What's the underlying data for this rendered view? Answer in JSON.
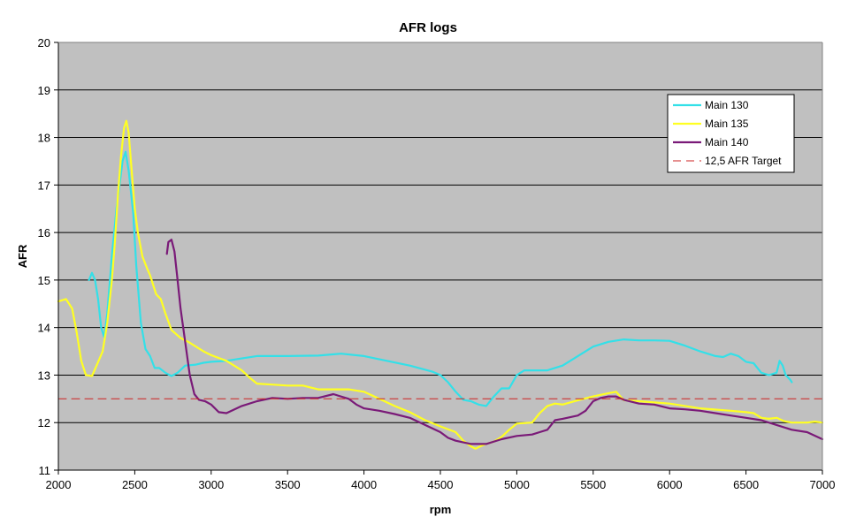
{
  "chart_data": {
    "type": "line",
    "title": "AFR logs",
    "xlabel": "rpm",
    "ylabel": "AFR",
    "xlim": [
      2000,
      7000
    ],
    "ylim": [
      11,
      20
    ],
    "xticks": [
      2000,
      2500,
      3000,
      3500,
      4000,
      4500,
      5000,
      5500,
      6000,
      6500,
      7000
    ],
    "yticks": [
      11,
      12,
      13,
      14,
      15,
      16,
      17,
      18,
      19,
      20
    ],
    "grid": true,
    "plot_background": "#c0c0c0",
    "legend_position": "top-right",
    "series": [
      {
        "name": "Main 130",
        "color": "#33e0e8",
        "points": [
          [
            2200,
            15.0
          ],
          [
            2220,
            15.15
          ],
          [
            2240,
            15.0
          ],
          [
            2260,
            14.6
          ],
          [
            2280,
            14.0
          ],
          [
            2300,
            13.8
          ],
          [
            2320,
            14.3
          ],
          [
            2350,
            15.5
          ],
          [
            2380,
            16.5
          ],
          [
            2420,
            17.5
          ],
          [
            2440,
            17.7
          ],
          [
            2460,
            17.3
          ],
          [
            2490,
            16.4
          ],
          [
            2510,
            15.3
          ],
          [
            2540,
            14.1
          ],
          [
            2570,
            13.55
          ],
          [
            2600,
            13.4
          ],
          [
            2630,
            13.15
          ],
          [
            2660,
            13.15
          ],
          [
            2700,
            13.05
          ],
          [
            2740,
            12.98
          ],
          [
            2780,
            13.05
          ],
          [
            2830,
            13.2
          ],
          [
            2900,
            13.22
          ],
          [
            2950,
            13.26
          ],
          [
            3000,
            13.28
          ],
          [
            3100,
            13.3
          ],
          [
            3200,
            13.35
          ],
          [
            3300,
            13.4
          ],
          [
            3500,
            13.4
          ],
          [
            3700,
            13.41
          ],
          [
            3850,
            13.45
          ],
          [
            4000,
            13.4
          ],
          [
            4150,
            13.3
          ],
          [
            4300,
            13.2
          ],
          [
            4450,
            13.07
          ],
          [
            4500,
            13.0
          ],
          [
            4550,
            12.85
          ],
          [
            4600,
            12.65
          ],
          [
            4650,
            12.48
          ],
          [
            4700,
            12.45
          ],
          [
            4750,
            12.38
          ],
          [
            4800,
            12.35
          ],
          [
            4850,
            12.55
          ],
          [
            4900,
            12.72
          ],
          [
            4950,
            12.72
          ],
          [
            5000,
            13.0
          ],
          [
            5050,
            13.1
          ],
          [
            5100,
            13.1
          ],
          [
            5200,
            13.1
          ],
          [
            5300,
            13.2
          ],
          [
            5400,
            13.4
          ],
          [
            5500,
            13.6
          ],
          [
            5600,
            13.7
          ],
          [
            5700,
            13.75
          ],
          [
            5800,
            13.73
          ],
          [
            5900,
            13.73
          ],
          [
            6000,
            13.72
          ],
          [
            6100,
            13.62
          ],
          [
            6200,
            13.5
          ],
          [
            6300,
            13.4
          ],
          [
            6350,
            13.38
          ],
          [
            6400,
            13.45
          ],
          [
            6450,
            13.4
          ],
          [
            6500,
            13.28
          ],
          [
            6550,
            13.25
          ],
          [
            6600,
            13.05
          ],
          [
            6650,
            13.0
          ],
          [
            6700,
            13.05
          ],
          [
            6720,
            13.3
          ],
          [
            6740,
            13.2
          ],
          [
            6760,
            13.0
          ],
          [
            6790,
            12.9
          ],
          [
            6800,
            12.85
          ]
        ]
      },
      {
        "name": "Main 135",
        "color": "#ffff22",
        "points": [
          [
            2000,
            14.55
          ],
          [
            2050,
            14.6
          ],
          [
            2090,
            14.4
          ],
          [
            2120,
            13.9
          ],
          [
            2150,
            13.3
          ],
          [
            2180,
            13.0
          ],
          [
            2220,
            12.98
          ],
          [
            2250,
            13.2
          ],
          [
            2290,
            13.5
          ],
          [
            2320,
            14.1
          ],
          [
            2350,
            15.0
          ],
          [
            2370,
            15.8
          ],
          [
            2390,
            16.8
          ],
          [
            2410,
            17.6
          ],
          [
            2430,
            18.2
          ],
          [
            2445,
            18.35
          ],
          [
            2460,
            18.1
          ],
          [
            2480,
            17.3
          ],
          [
            2500,
            16.5
          ],
          [
            2520,
            16.0
          ],
          [
            2550,
            15.5
          ],
          [
            2580,
            15.25
          ],
          [
            2600,
            15.1
          ],
          [
            2640,
            14.7
          ],
          [
            2670,
            14.6
          ],
          [
            2700,
            14.3
          ],
          [
            2740,
            13.95
          ],
          [
            2800,
            13.78
          ],
          [
            2850,
            13.7
          ],
          [
            2900,
            13.6
          ],
          [
            2950,
            13.5
          ],
          [
            3000,
            13.42
          ],
          [
            3100,
            13.3
          ],
          [
            3150,
            13.2
          ],
          [
            3200,
            13.1
          ],
          [
            3250,
            12.95
          ],
          [
            3300,
            12.82
          ],
          [
            3400,
            12.8
          ],
          [
            3500,
            12.78
          ],
          [
            3600,
            12.78
          ],
          [
            3700,
            12.7
          ],
          [
            3800,
            12.7
          ],
          [
            3900,
            12.7
          ],
          [
            4000,
            12.65
          ],
          [
            4100,
            12.5
          ],
          [
            4200,
            12.35
          ],
          [
            4300,
            12.22
          ],
          [
            4400,
            12.05
          ],
          [
            4500,
            11.92
          ],
          [
            4600,
            11.8
          ],
          [
            4650,
            11.62
          ],
          [
            4700,
            11.5
          ],
          [
            4730,
            11.45
          ],
          [
            4760,
            11.5
          ],
          [
            4800,
            11.55
          ],
          [
            4850,
            11.6
          ],
          [
            4900,
            11.7
          ],
          [
            4950,
            11.85
          ],
          [
            5000,
            11.98
          ],
          [
            5100,
            12.0
          ],
          [
            5150,
            12.2
          ],
          [
            5200,
            12.35
          ],
          [
            5250,
            12.4
          ],
          [
            5300,
            12.38
          ],
          [
            5400,
            12.47
          ],
          [
            5500,
            12.55
          ],
          [
            5600,
            12.62
          ],
          [
            5650,
            12.65
          ],
          [
            5700,
            12.47
          ],
          [
            5800,
            12.45
          ],
          [
            6000,
            12.4
          ],
          [
            6200,
            12.3
          ],
          [
            6400,
            12.25
          ],
          [
            6500,
            12.22
          ],
          [
            6550,
            12.2
          ],
          [
            6600,
            12.1
          ],
          [
            6650,
            12.08
          ],
          [
            6700,
            12.1
          ],
          [
            6750,
            12.03
          ],
          [
            6800,
            12.0
          ],
          [
            6900,
            12.0
          ],
          [
            6950,
            12.02
          ],
          [
            7000,
            12.0
          ]
        ]
      },
      {
        "name": "Main 140",
        "color": "#7a1a78",
        "points": [
          [
            2710,
            15.55
          ],
          [
            2720,
            15.8
          ],
          [
            2740,
            15.85
          ],
          [
            2760,
            15.6
          ],
          [
            2780,
            15.0
          ],
          [
            2800,
            14.4
          ],
          [
            2830,
            13.7
          ],
          [
            2860,
            13.0
          ],
          [
            2890,
            12.6
          ],
          [
            2920,
            12.48
          ],
          [
            2960,
            12.45
          ],
          [
            3000,
            12.38
          ],
          [
            3050,
            12.22
          ],
          [
            3100,
            12.2
          ],
          [
            3200,
            12.35
          ],
          [
            3300,
            12.45
          ],
          [
            3400,
            12.52
          ],
          [
            3500,
            12.5
          ],
          [
            3600,
            12.52
          ],
          [
            3700,
            12.52
          ],
          [
            3800,
            12.6
          ],
          [
            3900,
            12.5
          ],
          [
            3950,
            12.38
          ],
          [
            4000,
            12.3
          ],
          [
            4100,
            12.25
          ],
          [
            4200,
            12.18
          ],
          [
            4300,
            12.1
          ],
          [
            4400,
            11.95
          ],
          [
            4500,
            11.8
          ],
          [
            4550,
            11.68
          ],
          [
            4600,
            11.62
          ],
          [
            4700,
            11.55
          ],
          [
            4800,
            11.55
          ],
          [
            4900,
            11.65
          ],
          [
            5000,
            11.72
          ],
          [
            5100,
            11.75
          ],
          [
            5150,
            11.8
          ],
          [
            5200,
            11.85
          ],
          [
            5250,
            12.05
          ],
          [
            5300,
            12.08
          ],
          [
            5400,
            12.15
          ],
          [
            5450,
            12.25
          ],
          [
            5500,
            12.45
          ],
          [
            5550,
            12.52
          ],
          [
            5600,
            12.55
          ],
          [
            5650,
            12.55
          ],
          [
            5700,
            12.48
          ],
          [
            5800,
            12.4
          ],
          [
            5900,
            12.38
          ],
          [
            6000,
            12.3
          ],
          [
            6100,
            12.28
          ],
          [
            6200,
            12.25
          ],
          [
            6300,
            12.2
          ],
          [
            6400,
            12.15
          ],
          [
            6500,
            12.1
          ],
          [
            6600,
            12.05
          ],
          [
            6700,
            11.95
          ],
          [
            6800,
            11.85
          ],
          [
            6900,
            11.8
          ],
          [
            7000,
            11.65
          ]
        ]
      },
      {
        "name": "12,5 AFR Target",
        "color": "#cc2222",
        "dashed": true,
        "points": [
          [
            2000,
            12.5
          ],
          [
            7000,
            12.5
          ]
        ]
      }
    ]
  }
}
